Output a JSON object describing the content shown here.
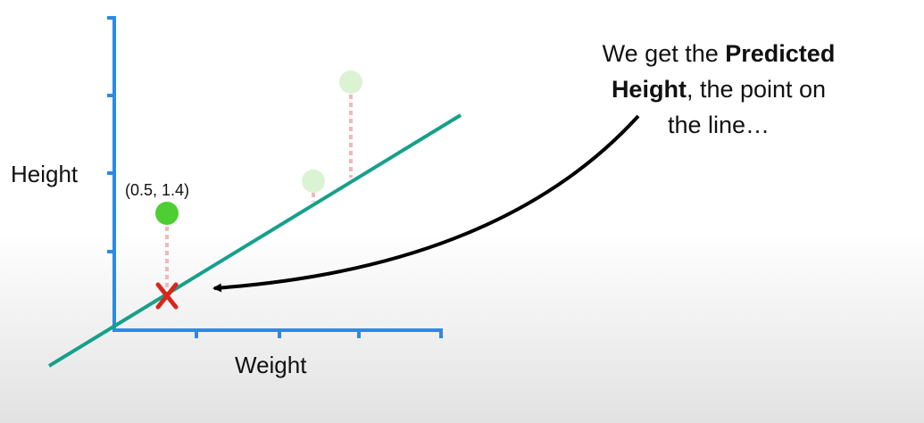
{
  "axes": {
    "y_label": "Height",
    "x_label": "Weight"
  },
  "point_label": "(0.5, 1.4)",
  "annotation": {
    "lines": [
      [
        {
          "text": "We get the "
        },
        {
          "text": "Predicted",
          "bold": true
        }
      ],
      [
        {
          "text": "Height",
          "bold": true
        },
        {
          "text": ", the point on"
        }
      ],
      [
        {
          "text": "the line…"
        }
      ]
    ]
  }
}
